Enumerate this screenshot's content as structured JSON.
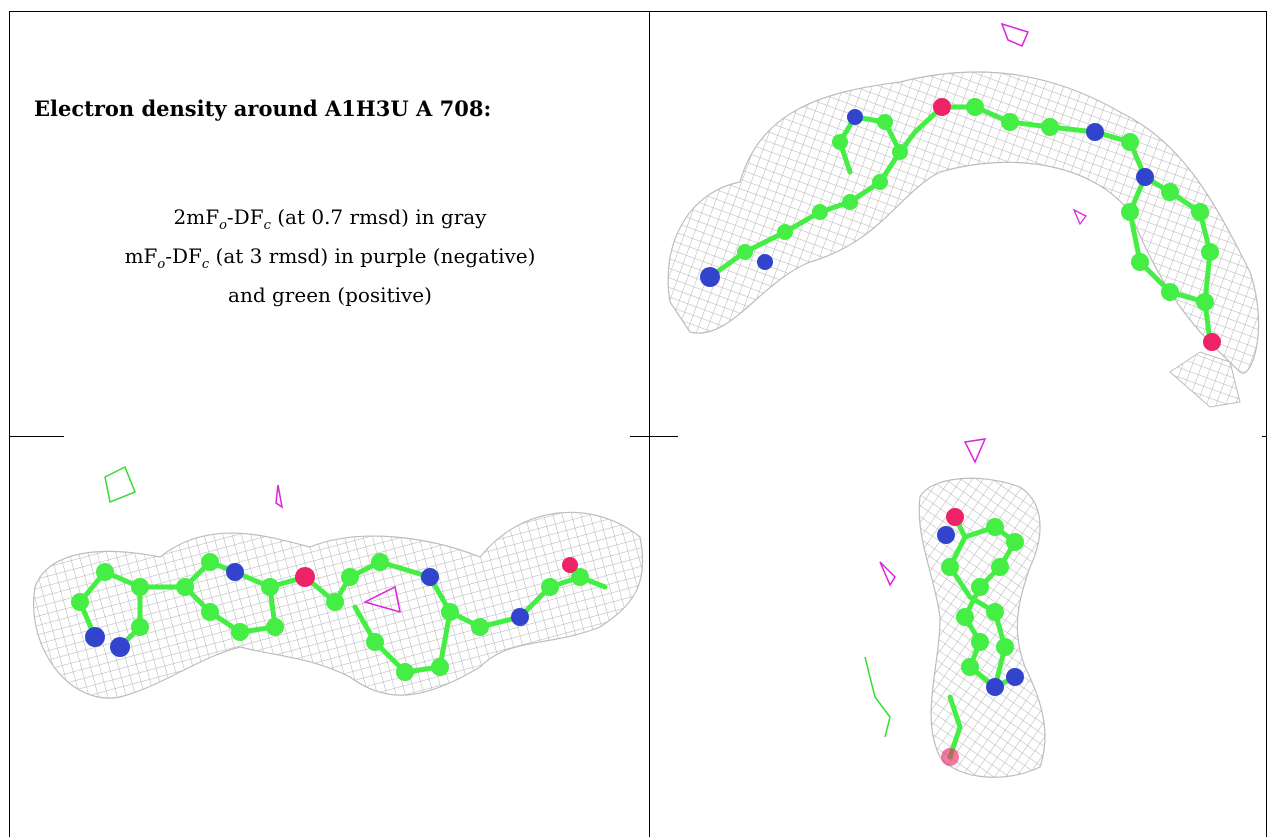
{
  "caption": {
    "title": "Electron density around A1H3U A 708:",
    "line1": {
      "a": "2mF",
      "sub1": "o",
      "b": "-DF",
      "sub2": "c",
      "c": " (at 0.7 rmsd) in gray"
    },
    "line2": {
      "a": "mF",
      "sub1": "o",
      "b": "-DF",
      "sub2": "c",
      "c": " (at 3 rmsd) in purple (negative)"
    },
    "line3": "and green (positive)"
  },
  "colors": {
    "mesh_gray": "#b4b4b4",
    "carbon_green": "#44ee44",
    "nitrogen_blue": "#3344cc",
    "oxygen_red": "#ee2266",
    "negative_purple": "#dd22dd",
    "positive_green": "#33dd33"
  }
}
